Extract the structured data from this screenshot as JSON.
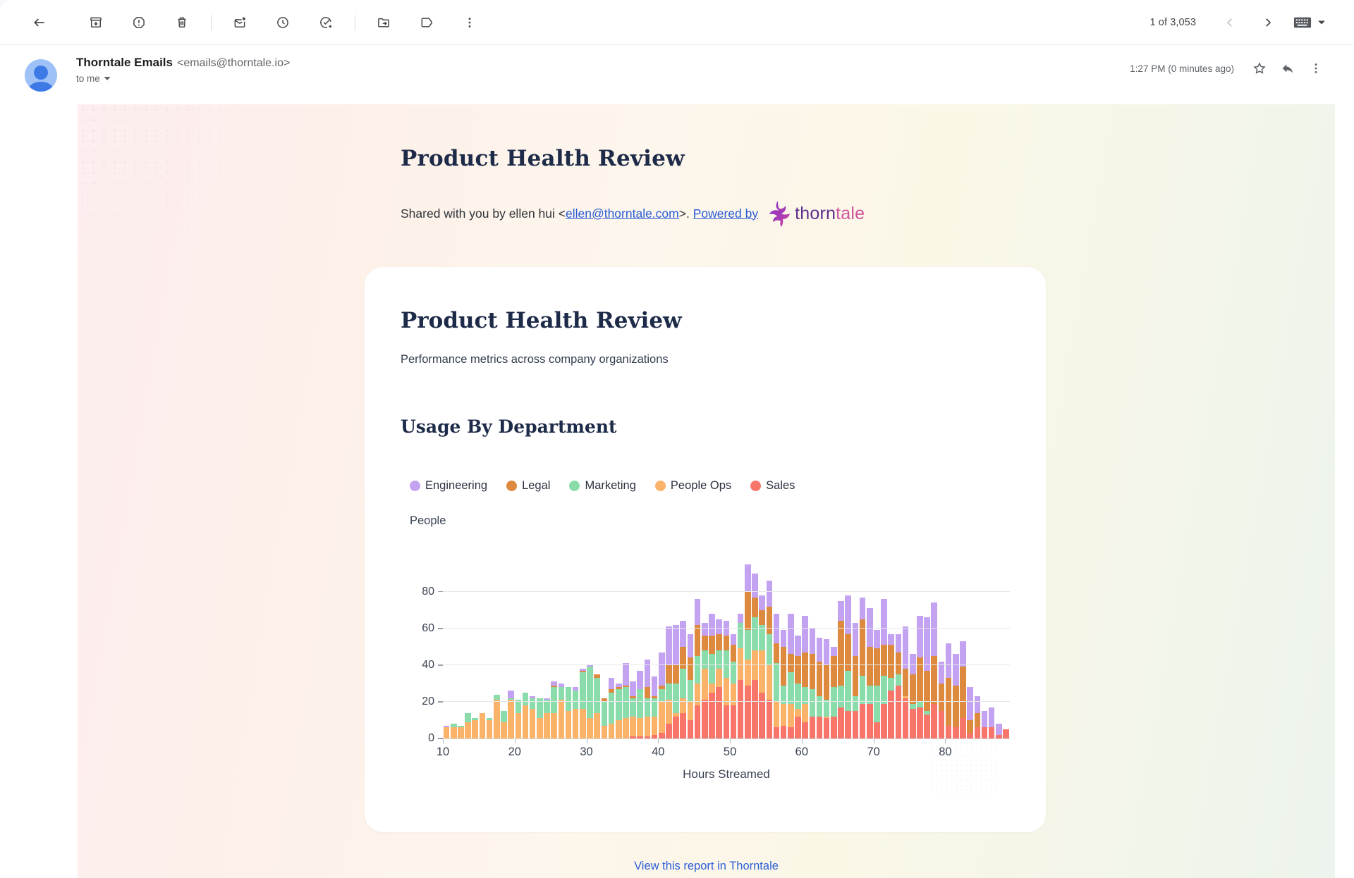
{
  "toolbar": {
    "page_count": "1 of 3,053",
    "icons": [
      "back",
      "archive",
      "report-spam",
      "delete",
      "mark-unread",
      "snooze",
      "add-to-tasks",
      "move-to",
      "label",
      "more",
      "prev",
      "next",
      "input-method"
    ]
  },
  "email_header": {
    "sender_name": "Thorntale Emails",
    "sender_email": "<emails@thorntale.io>",
    "to_label": "to me",
    "timestamp": "1:27 PM (0 minutes ago)"
  },
  "email": {
    "title": "Product Health Review",
    "shared_prefix": "Shared with you by ellen hui <",
    "shared_email": "ellen@thorntale.com",
    "shared_suffix": ">.",
    "powered_by": "Powered by",
    "brand_thorn": "thorn",
    "brand_tale": "tale",
    "footer_link": "View this report in Thorntale"
  },
  "card": {
    "title": "Product Health Review",
    "subtitle": "Performance metrics across company organizations",
    "section_title": "Usage By Department"
  },
  "chart_data": {
    "type": "bar",
    "stacked": true,
    "title": "Usage By Department",
    "xlabel": "Hours Streamed",
    "ylabel": "People",
    "ylim": [
      0,
      106
    ],
    "yticks": [
      0,
      20,
      40,
      60,
      80
    ],
    "xticks": [
      10,
      20,
      30,
      40,
      50,
      60,
      70,
      80
    ],
    "legend_position": "top",
    "grid": true,
    "categories": [
      10,
      11,
      12,
      13,
      14,
      15,
      16,
      17,
      18,
      19,
      20,
      21,
      22,
      23,
      24,
      25,
      26,
      27,
      28,
      29,
      30,
      31,
      32,
      33,
      34,
      35,
      36,
      37,
      38,
      39,
      40,
      41,
      42,
      43,
      44,
      45,
      46,
      47,
      48,
      49,
      50,
      51,
      52,
      53,
      54,
      55,
      56,
      57,
      58,
      59,
      60,
      61,
      62,
      63,
      64,
      65,
      66,
      67,
      68,
      69,
      70,
      71,
      72,
      73,
      74,
      75,
      76,
      77,
      78,
      79,
      80,
      81,
      82,
      83,
      84,
      85,
      86,
      87,
      88
    ],
    "stack_order": [
      "Sales",
      "People Ops",
      "Marketing",
      "Legal",
      "Engineering"
    ],
    "series": [
      {
        "name": "Engineering",
        "color": "#c3a2f1",
        "values": [
          1,
          0,
          0,
          0,
          0,
          0,
          0,
          0,
          0,
          4,
          0,
          0,
          1,
          0,
          1,
          2,
          2,
          0,
          2,
          1,
          1,
          0,
          0,
          6,
          2,
          12,
          8,
          10,
          15,
          11,
          18,
          21,
          22,
          14,
          13,
          14,
          7,
          12,
          8,
          8,
          6,
          5,
          15,
          13,
          8,
          14,
          16,
          9,
          22,
          11,
          20,
          14,
          13,
          14,
          5,
          11,
          21,
          18,
          12,
          21,
          10,
          25,
          6,
          10,
          23,
          11,
          23,
          29,
          29,
          12,
          19,
          17,
          14,
          18,
          9,
          9,
          11,
          6,
          0
        ]
      },
      {
        "name": "Legal",
        "color": "#dd8a3e",
        "values": [
          0,
          0,
          0,
          0,
          0,
          0,
          0,
          0,
          0,
          0,
          0,
          0,
          0,
          0,
          0,
          1,
          0,
          0,
          0,
          1,
          0,
          2,
          2,
          2,
          1,
          1,
          1,
          0,
          6,
          1,
          2,
          10,
          10,
          12,
          12,
          17,
          8,
          10,
          9,
          8,
          9,
          0,
          21,
          11,
          8,
          15,
          11,
          21,
          10,
          15,
          19,
          19,
          19,
          19,
          17,
          35,
          20,
          22,
          31,
          21,
          20,
          17,
          18,
          12,
          15,
          16,
          24,
          22,
          26,
          15,
          26,
          23,
          28,
          7,
          8,
          0,
          0,
          0,
          0
        ]
      },
      {
        "name": "Marketing",
        "color": "#8adcaa",
        "values": [
          0,
          2,
          1,
          5,
          1,
          0,
          1,
          3,
          6,
          1,
          7,
          7,
          6,
          11,
          7,
          14,
          7,
          13,
          10,
          20,
          28,
          19,
          13,
          17,
          17,
          17,
          10,
          16,
          10,
          10,
          7,
          9,
          16,
          16,
          12,
          15,
          10,
          16,
          10,
          15,
          12,
          14,
          16,
          18,
          14,
          17,
          21,
          10,
          17,
          14,
          9,
          15,
          11,
          9,
          16,
          12,
          22,
          8,
          15,
          10,
          20,
          15,
          7,
          6,
          0,
          3,
          3,
          2,
          0,
          0,
          0,
          0,
          0,
          0,
          0,
          0,
          0,
          0,
          0
        ]
      },
      {
        "name": "People Ops",
        "color": "#fbb269",
        "values": [
          6,
          6,
          6,
          9,
          10,
          14,
          10,
          21,
          9,
          21,
          14,
          18,
          16,
          11,
          14,
          14,
          21,
          15,
          16,
          16,
          11,
          14,
          7,
          8,
          10,
          11,
          11,
          10,
          11,
          10,
          17,
          13,
          2,
          8,
          10,
          12,
          17,
          5,
          10,
          15,
          12,
          17,
          14,
          16,
          23,
          19,
          14,
          12,
          13,
          4,
          10,
          0,
          0,
          1,
          0,
          0,
          0,
          0,
          0,
          0,
          0,
          0,
          0,
          0,
          1,
          0,
          0,
          0,
          0,
          0,
          0,
          0,
          0,
          0,
          0,
          0,
          0,
          0,
          0
        ]
      },
      {
        "name": "Sales",
        "color": "#f8756a",
        "values": [
          0,
          0,
          0,
          0,
          0,
          0,
          0,
          0,
          0,
          0,
          0,
          0,
          0,
          0,
          0,
          0,
          0,
          0,
          0,
          0,
          0,
          0,
          0,
          0,
          0,
          0,
          1,
          1,
          1,
          2,
          3,
          8,
          12,
          14,
          10,
          18,
          21,
          25,
          28,
          18,
          18,
          32,
          29,
          32,
          25,
          21,
          6,
          7,
          6,
          12,
          9,
          12,
          12,
          11,
          12,
          17,
          15,
          15,
          19,
          19,
          9,
          19,
          26,
          29,
          22,
          16,
          17,
          13,
          19,
          15,
          7,
          6,
          11,
          3,
          6,
          6,
          6,
          2,
          5
        ]
      }
    ]
  }
}
